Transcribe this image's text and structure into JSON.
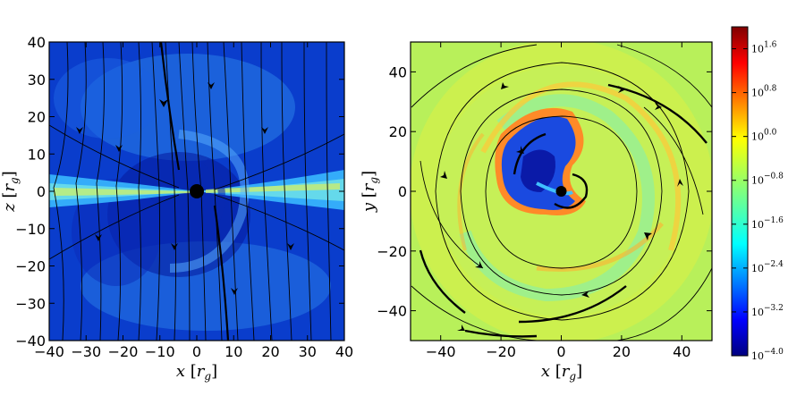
{
  "chart_data": [
    {
      "type": "heatmap",
      "title": "",
      "xlabel": "x [r_g]",
      "ylabel": "z [r_g]",
      "xlabel_parts": {
        "var": "x",
        "open": "[",
        "sym": "r",
        "sub": "g",
        "close": "]"
      },
      "ylabel_parts": {
        "var": "z",
        "open": "[",
        "sym": "r",
        "sub": "g",
        "close": "]"
      },
      "xlim": [
        -40,
        40
      ],
      "ylim": [
        -40,
        40
      ],
      "x_ticks": [
        -40,
        -30,
        -20,
        -10,
        0,
        10,
        20,
        30,
        40
      ],
      "y_ticks": [
        -40,
        -30,
        -20,
        -10,
        0,
        10,
        20,
        30,
        40
      ],
      "x_tick_labels": [
        "−40",
        "−30",
        "−20",
        "−10",
        "0",
        "10",
        "20",
        "30",
        "40"
      ],
      "y_tick_labels": [
        "−40",
        "−30",
        "−20",
        "−10",
        "0",
        "10",
        "20",
        "30",
        "40"
      ],
      "black_hole": {
        "x": 0,
        "y": 0
      },
      "overlay": "streamlines"
    },
    {
      "type": "heatmap",
      "title": "",
      "xlabel": "x [r_g]",
      "ylabel": "y [r_g]",
      "xlabel_parts": {
        "var": "x",
        "open": "[",
        "sym": "r",
        "sub": "g",
        "close": "]"
      },
      "ylabel_parts": {
        "var": "y",
        "open": "[",
        "sym": "r",
        "sub": "g",
        "close": "]"
      },
      "xlim": [
        -50,
        50
      ],
      "ylim": [
        -50,
        50
      ],
      "x_ticks": [
        -40,
        -20,
        0,
        20,
        40
      ],
      "y_ticks": [
        -40,
        -20,
        0,
        20,
        40
      ],
      "x_tick_labels": [
        "−40",
        "−20",
        "0",
        "20",
        "40"
      ],
      "y_tick_labels": [
        "−40",
        "−20",
        "0",
        "20",
        "40"
      ],
      "black_hole": {
        "x": 0,
        "y": 0
      },
      "overlay": "streamlines"
    }
  ],
  "colorbar": {
    "scale": "log",
    "range": [
      -4.0,
      2.0
    ],
    "ticks": [
      1.6,
      0.8,
      0.0,
      -0.8,
      -1.6,
      -2.4,
      -3.2,
      -4.0
    ],
    "tick_labels": [
      {
        "base": "10",
        "exp": "1.6"
      },
      {
        "base": "10",
        "exp": "0.8"
      },
      {
        "base": "10",
        "exp": "0.0"
      },
      {
        "base": "10",
        "exp": "−0.8"
      },
      {
        "base": "10",
        "exp": "−1.6"
      },
      {
        "base": "10",
        "exp": "−2.4"
      },
      {
        "base": "10",
        "exp": "−3.2"
      },
      {
        "base": "10",
        "exp": "−4.0"
      }
    ],
    "colormap": [
      "#00007f",
      "#0000ff",
      "#007fff",
      "#00ffff",
      "#7fff7f",
      "#ffff00",
      "#ff7f00",
      "#ff0000",
      "#7f0000"
    ]
  }
}
